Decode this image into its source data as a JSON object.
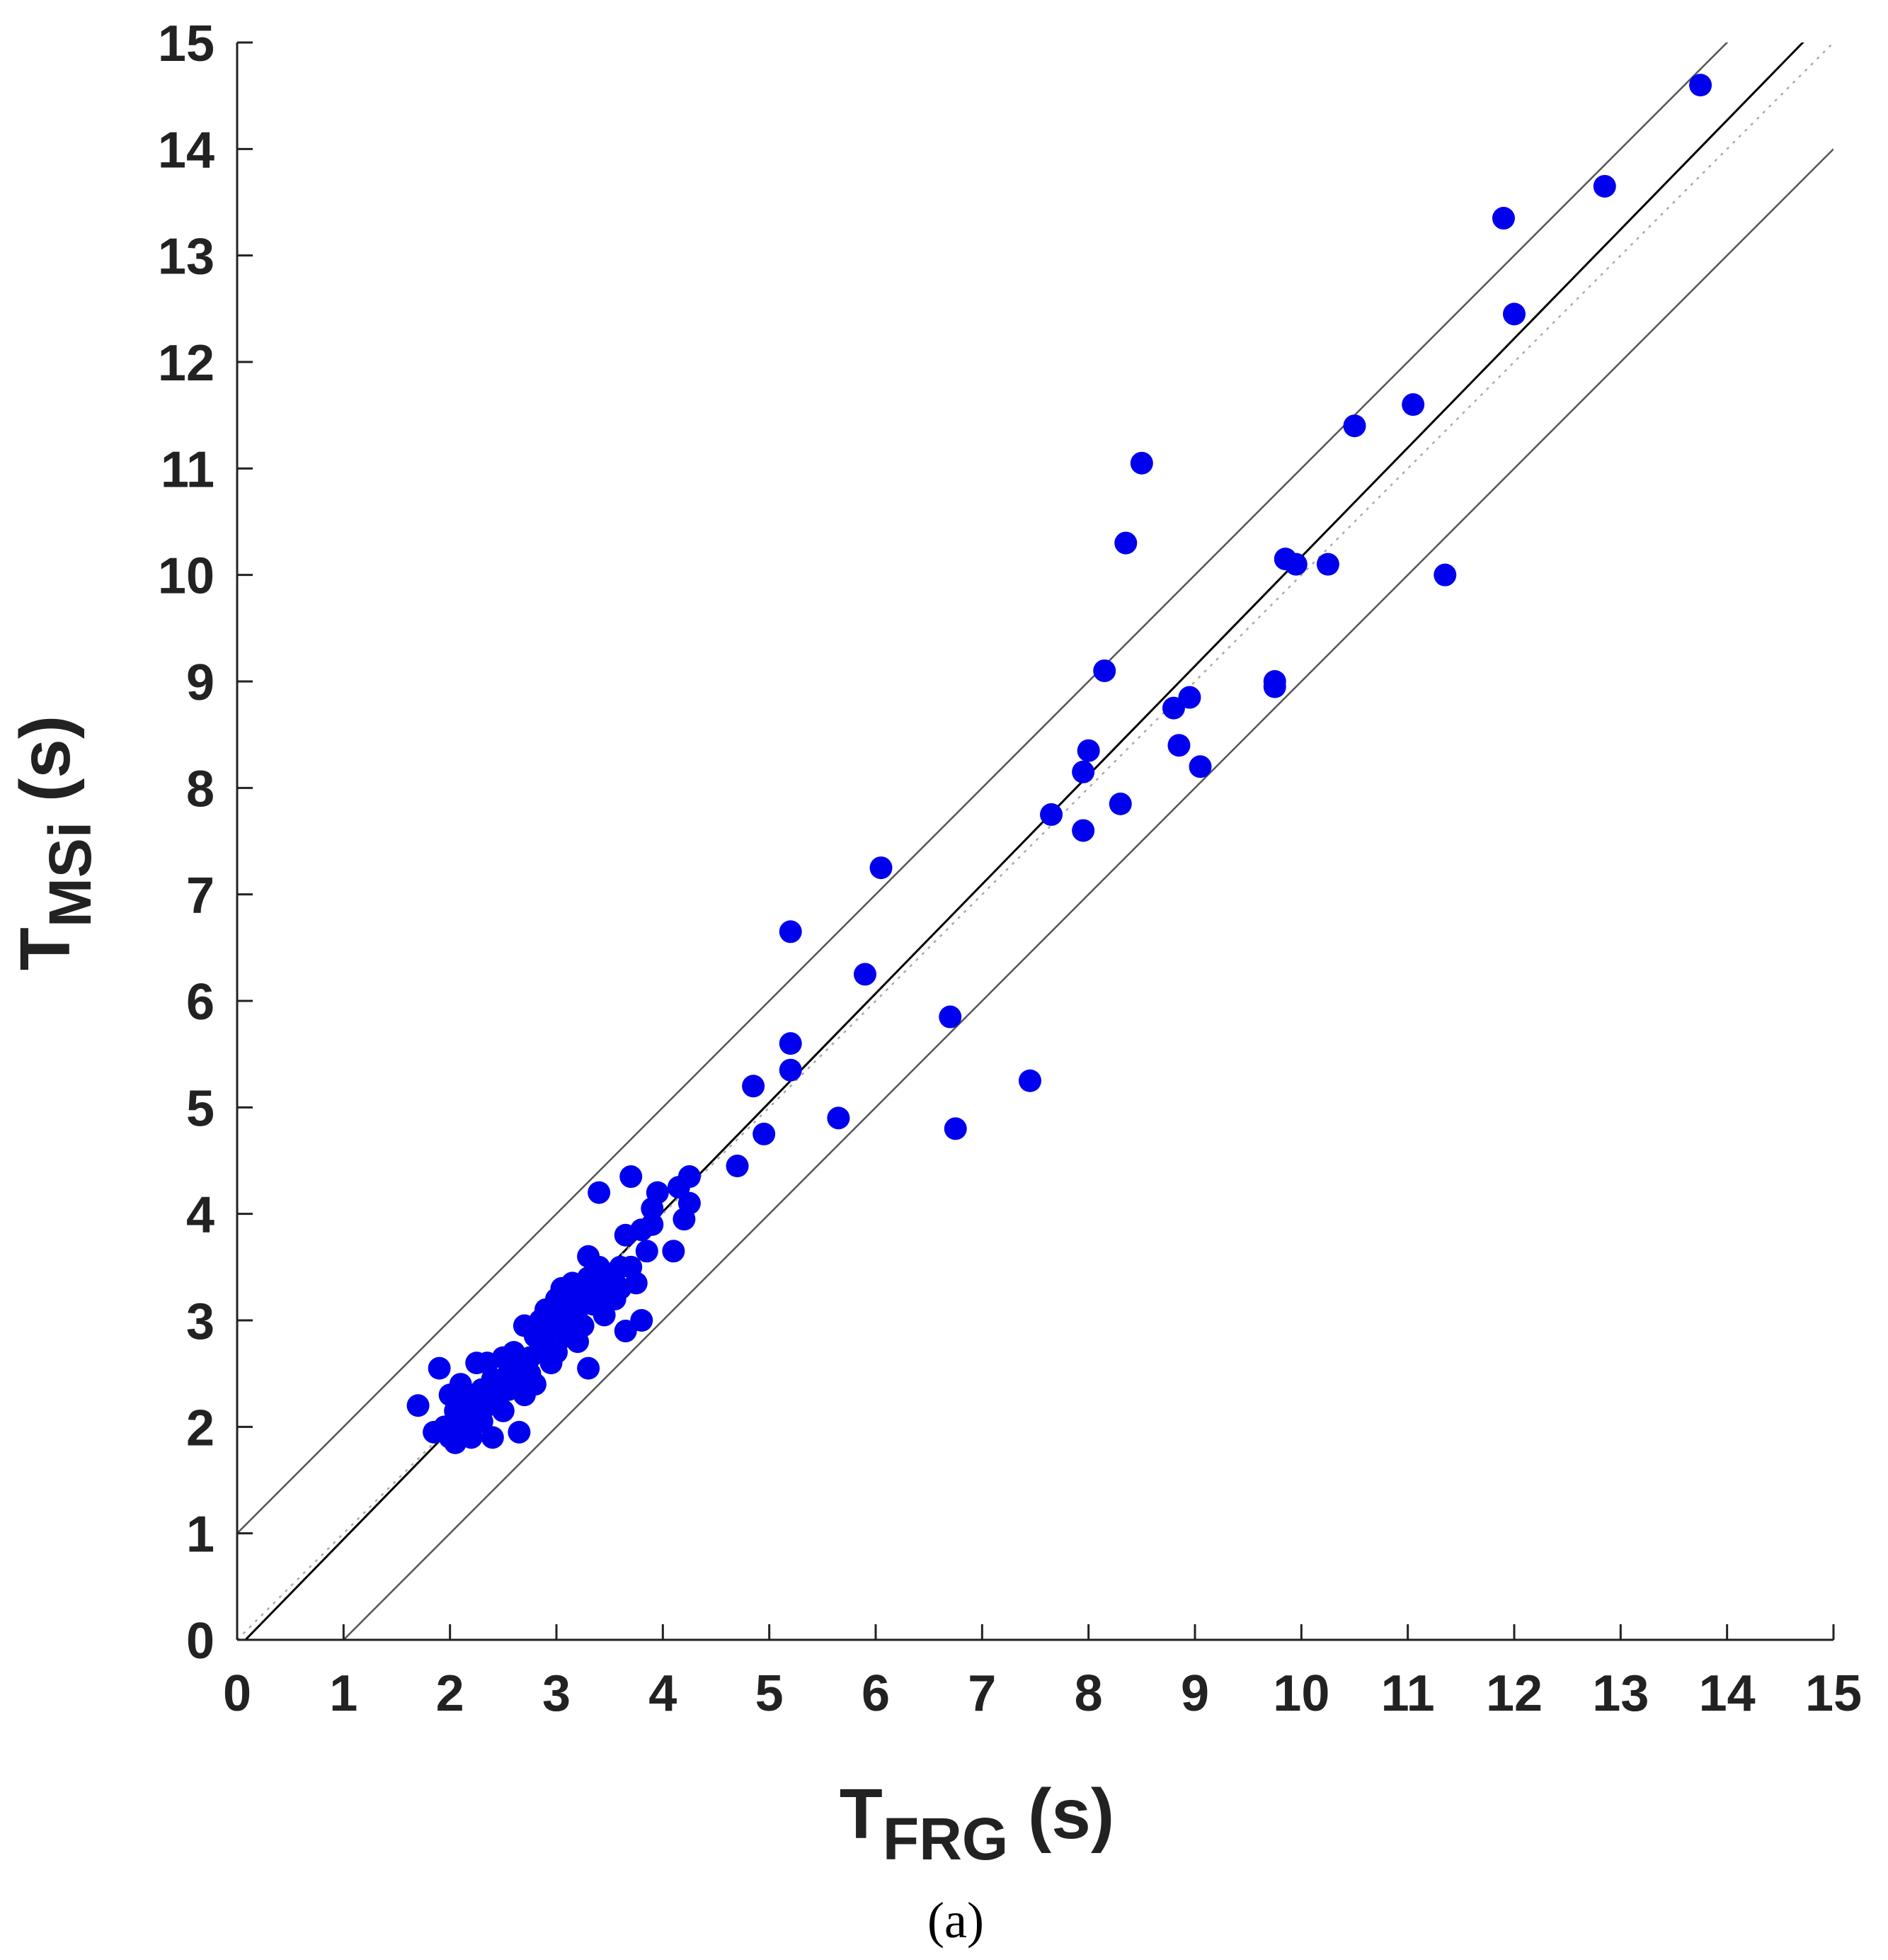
{
  "chart_data": {
    "type": "scatter",
    "title": "",
    "xlabel": {
      "main": "T",
      "sub": "FRG",
      "unit": " (s)"
    },
    "ylabel": {
      "main": "T",
      "sub": "MSi",
      "unit": " (s)"
    },
    "xlim": [
      0,
      15
    ],
    "ylim": [
      0,
      15
    ],
    "xticks": [
      0,
      1,
      2,
      3,
      4,
      5,
      6,
      7,
      8,
      9,
      10,
      11,
      12,
      13,
      14,
      15
    ],
    "yticks": [
      0,
      1,
      2,
      3,
      4,
      5,
      6,
      7,
      8,
      9,
      10,
      11,
      12,
      13,
      14,
      15
    ],
    "grid": false,
    "caption": "(a)",
    "colors": {
      "points": "#0000ee",
      "fit_line": "#000000",
      "bound_lines": "#555555",
      "identity_line": "#aaaaaa",
      "axis": "#222222"
    },
    "reference_lines": [
      {
        "name": "upper-bound",
        "style": "solid",
        "intercept": 1.0,
        "slope": 1.0
      },
      {
        "name": "lower-bound",
        "style": "solid",
        "intercept": -1.0,
        "slope": 1.0
      },
      {
        "name": "fit-line",
        "style": "solid",
        "intercept": -0.08,
        "slope": 1.025
      },
      {
        "name": "identity-line",
        "style": "dotted",
        "intercept": 0.0,
        "slope": 1.0
      }
    ],
    "series": [
      {
        "name": "observations",
        "points": [
          [
            1.7,
            2.2
          ],
          [
            1.85,
            1.95
          ],
          [
            1.9,
            2.55
          ],
          [
            1.95,
            2.0
          ],
          [
            2.0,
            2.3
          ],
          [
            2.0,
            1.9
          ],
          [
            2.05,
            1.85
          ],
          [
            2.05,
            2.15
          ],
          [
            2.1,
            2.4
          ],
          [
            2.1,
            2.05
          ],
          [
            2.15,
            1.95
          ],
          [
            2.2,
            2.25
          ],
          [
            2.2,
            1.9
          ],
          [
            2.25,
            2.6
          ],
          [
            2.25,
            2.1
          ],
          [
            2.3,
            2.35
          ],
          [
            2.3,
            2.05
          ],
          [
            2.35,
            2.6
          ],
          [
            2.35,
            2.2
          ],
          [
            2.4,
            2.45
          ],
          [
            2.4,
            1.9
          ],
          [
            2.45,
            2.3
          ],
          [
            2.5,
            2.65
          ],
          [
            2.5,
            2.15
          ],
          [
            2.55,
            2.5
          ],
          [
            2.55,
            2.35
          ],
          [
            2.6,
            2.7
          ],
          [
            2.6,
            2.4
          ],
          [
            2.65,
            2.55
          ],
          [
            2.65,
            1.95
          ],
          [
            2.7,
            2.95
          ],
          [
            2.7,
            2.3
          ],
          [
            2.75,
            2.65
          ],
          [
            2.75,
            2.5
          ],
          [
            2.8,
            2.85
          ],
          [
            2.8,
            2.4
          ],
          [
            2.85,
            3.0
          ],
          [
            2.85,
            2.7
          ],
          [
            2.9,
            3.1
          ],
          [
            2.9,
            2.75
          ],
          [
            2.95,
            2.6
          ],
          [
            2.95,
            2.9
          ],
          [
            3.0,
            3.2
          ],
          [
            3.0,
            2.95
          ],
          [
            3.0,
            2.7
          ],
          [
            3.05,
            3.3
          ],
          [
            3.05,
            3.05
          ],
          [
            3.1,
            3.15
          ],
          [
            3.1,
            2.85
          ],
          [
            3.15,
            3.35
          ],
          [
            3.15,
            3.0
          ],
          [
            3.2,
            3.1
          ],
          [
            3.2,
            2.8
          ],
          [
            3.25,
            3.25
          ],
          [
            3.25,
            2.95
          ],
          [
            3.3,
            3.6
          ],
          [
            3.3,
            3.4
          ],
          [
            3.3,
            2.55
          ],
          [
            3.35,
            3.15
          ],
          [
            3.35,
            3.3
          ],
          [
            3.4,
            4.2
          ],
          [
            3.4,
            3.5
          ],
          [
            3.45,
            3.2
          ],
          [
            3.45,
            3.05
          ],
          [
            3.5,
            3.35
          ],
          [
            3.55,
            3.45
          ],
          [
            3.55,
            3.2
          ],
          [
            3.6,
            3.5
          ],
          [
            3.6,
            3.3
          ],
          [
            3.65,
            3.8
          ],
          [
            3.65,
            2.9
          ],
          [
            3.7,
            4.35
          ],
          [
            3.7,
            3.5
          ],
          [
            3.75,
            3.35
          ],
          [
            3.8,
            3.85
          ],
          [
            3.8,
            3.0
          ],
          [
            3.85,
            3.65
          ],
          [
            3.9,
            3.9
          ],
          [
            3.9,
            4.05
          ],
          [
            3.95,
            4.2
          ],
          [
            4.1,
            3.65
          ],
          [
            4.15,
            4.25
          ],
          [
            4.2,
            3.95
          ],
          [
            4.25,
            4.1
          ],
          [
            4.25,
            4.35
          ],
          [
            4.7,
            4.45
          ],
          [
            4.85,
            5.2
          ],
          [
            4.95,
            4.75
          ],
          [
            5.2,
            6.65
          ],
          [
            5.2,
            5.6
          ],
          [
            5.2,
            5.35
          ],
          [
            5.65,
            4.9
          ],
          [
            5.9,
            6.25
          ],
          [
            6.05,
            7.25
          ],
          [
            6.7,
            5.85
          ],
          [
            6.75,
            4.8
          ],
          [
            7.45,
            5.25
          ],
          [
            7.65,
            7.75
          ],
          [
            7.95,
            7.6
          ],
          [
            7.95,
            8.15
          ],
          [
            8.0,
            8.35
          ],
          [
            8.15,
            9.1
          ],
          [
            8.3,
            7.85
          ],
          [
            8.35,
            10.3
          ],
          [
            8.5,
            11.05
          ],
          [
            8.8,
            8.75
          ],
          [
            8.85,
            8.4
          ],
          [
            8.95,
            8.85
          ],
          [
            9.05,
            8.2
          ],
          [
            9.75,
            9.0
          ],
          [
            9.75,
            8.95
          ],
          [
            9.85,
            10.15
          ],
          [
            9.95,
            10.1
          ],
          [
            10.25,
            10.1
          ],
          [
            10.5,
            11.4
          ],
          [
            11.05,
            11.6
          ],
          [
            11.35,
            10.0
          ],
          [
            11.9,
            13.35
          ],
          [
            12.0,
            12.45
          ],
          [
            12.85,
            13.65
          ],
          [
            13.75,
            14.6
          ]
        ]
      }
    ]
  }
}
